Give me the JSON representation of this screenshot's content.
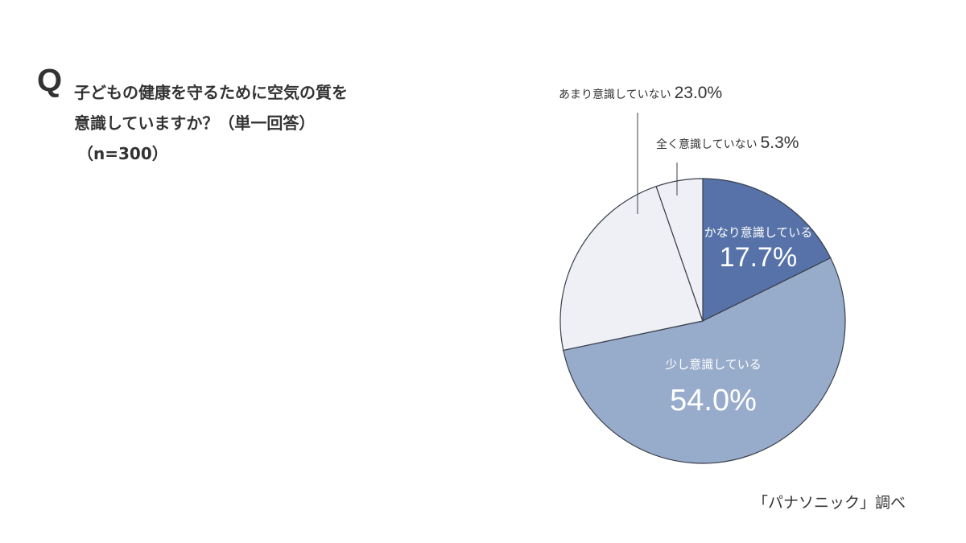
{
  "question": {
    "mark": "Q",
    "line1": "子どもの健康を守るために空気の質を",
    "line2": "意識していますか？（単一回答）",
    "sample": "（n=300）"
  },
  "source": "「パナソニック」調べ",
  "colors": {
    "very_aware": "#5672a8",
    "somewhat_aware": "#97abcb",
    "not_very_aware": "#eef0f5",
    "not_aware": "#eef0f5",
    "outline": "#3a3f4a",
    "text": "#333333"
  },
  "labels": {
    "very_aware": {
      "text": "かなり意識している",
      "value": "17.7%"
    },
    "somewhat_aware": {
      "text": "少し意識している",
      "value": "54.0%"
    },
    "not_very_aware": {
      "text": "あまり意識していない",
      "value": "23.0%"
    },
    "not_aware": {
      "text": "全く意識していない",
      "value": "5.3%"
    }
  },
  "chart_data": {
    "type": "pie",
    "title": "子どもの健康を守るために空気の質を意識していますか？（単一回答）（n=300）",
    "categories": [
      "かなり意識している",
      "少し意識している",
      "あまり意識していない",
      "全く意識していない"
    ],
    "values": [
      17.7,
      54.0,
      23.0,
      5.3
    ],
    "unit": "%",
    "start_angle": "12 o'clock, clockwise",
    "colors": [
      "#5672a8",
      "#97abcb",
      "#eef0f5",
      "#eef0f5"
    ],
    "source": "「パナソニック」調べ",
    "sample_size": 300
  }
}
